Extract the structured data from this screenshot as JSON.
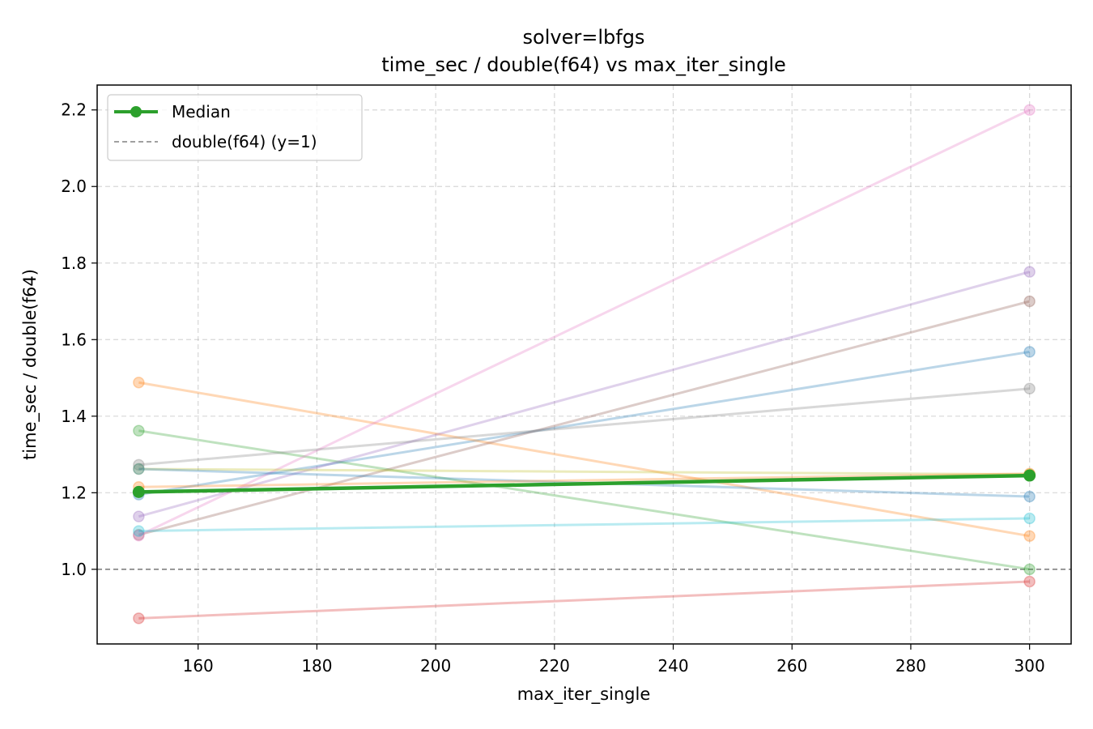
{
  "chart_data": {
    "type": "line",
    "title": "solver=lbfgs",
    "subtitle": "time_sec / double(f64) vs max_iter_single",
    "xlabel": "max_iter_single",
    "ylabel": "time_sec / double(f64)",
    "xlim": [
      143,
      307
    ],
    "ylim": [
      0.805,
      2.265
    ],
    "xticks": [
      160,
      180,
      200,
      220,
      240,
      260,
      280,
      300
    ],
    "yticks": [
      1.0,
      1.2,
      1.4,
      1.6,
      1.8,
      2.0,
      2.2
    ],
    "grid": true,
    "legend_position": "top-left",
    "x": [
      150,
      300
    ],
    "series": [
      {
        "color": "#1f77b4",
        "values": [
          1.195,
          1.568
        ]
      },
      {
        "color": "#ff7f0e",
        "values": [
          1.488,
          1.087
        ]
      },
      {
        "color": "#2ca02c",
        "values": [
          1.362,
          1.0
        ]
      },
      {
        "color": "#d62728",
        "values": [
          0.872,
          0.968
        ]
      },
      {
        "color": "#9467bd",
        "values": [
          1.138,
          1.777
        ]
      },
      {
        "color": "#8c564b",
        "values": [
          1.09,
          1.7
        ]
      },
      {
        "color": "#e377c2",
        "values": [
          1.088,
          2.2
        ]
      },
      {
        "color": "#7f7f7f",
        "values": [
          1.273,
          1.472
        ]
      },
      {
        "color": "#bcbd22",
        "values": [
          1.262,
          1.248
        ]
      },
      {
        "color": "#17becf",
        "values": [
          1.1,
          1.133
        ]
      },
      {
        "color": "#1f77b4",
        "values": [
          1.262,
          1.19
        ]
      },
      {
        "color": "#ff7f0e",
        "values": [
          1.215,
          1.25
        ]
      }
    ],
    "median": {
      "name": "Median",
      "color": "#2ca02c",
      "values": [
        1.202,
        1.245
      ]
    },
    "reference_line": {
      "name": "double(f64) (y=1)",
      "y": 1.0,
      "color": "#808080"
    }
  }
}
